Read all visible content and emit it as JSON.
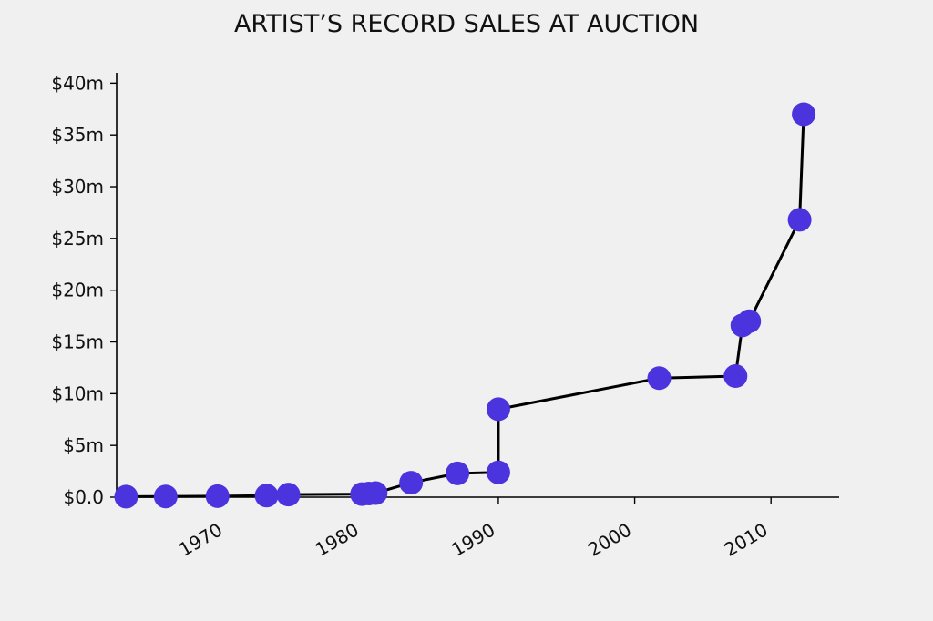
{
  "chart_data": {
    "type": "line",
    "title": "ARTIST’S RECORD SALES AT AUCTION",
    "xlabel": "",
    "ylabel": "",
    "xlim": [
      1962,
      2015
    ],
    "ylim": [
      0,
      41
    ],
    "x_ticks": [
      1970,
      1980,
      1990,
      2000,
      2010
    ],
    "y_ticks": [
      0,
      5,
      10,
      15,
      20,
      25,
      30,
      35,
      40
    ],
    "y_tick_labels": [
      "$0.0",
      "$5m",
      "$10m",
      "$15m",
      "$20m",
      "$25m",
      "$30m",
      "$35m",
      "$40m"
    ],
    "grid": false,
    "line_color": "#000000",
    "marker_color": "#4b33dd",
    "series": [
      {
        "x": [
          1962.7,
          1965.6,
          1969.4,
          1973.0,
          1974.6,
          1980.0,
          1980.5,
          1981.0,
          1983.6,
          1987.0,
          1990.0,
          1990.0,
          2001.8,
          2007.4,
          2007.9,
          2008.4,
          2012.1,
          2012.4
        ],
        "y": [
          0.05,
          0.07,
          0.1,
          0.15,
          0.25,
          0.3,
          0.35,
          0.4,
          1.4,
          2.3,
          2.4,
          8.5,
          11.5,
          11.7,
          16.6,
          17.0,
          26.8,
          37.0
        ]
      }
    ]
  }
}
